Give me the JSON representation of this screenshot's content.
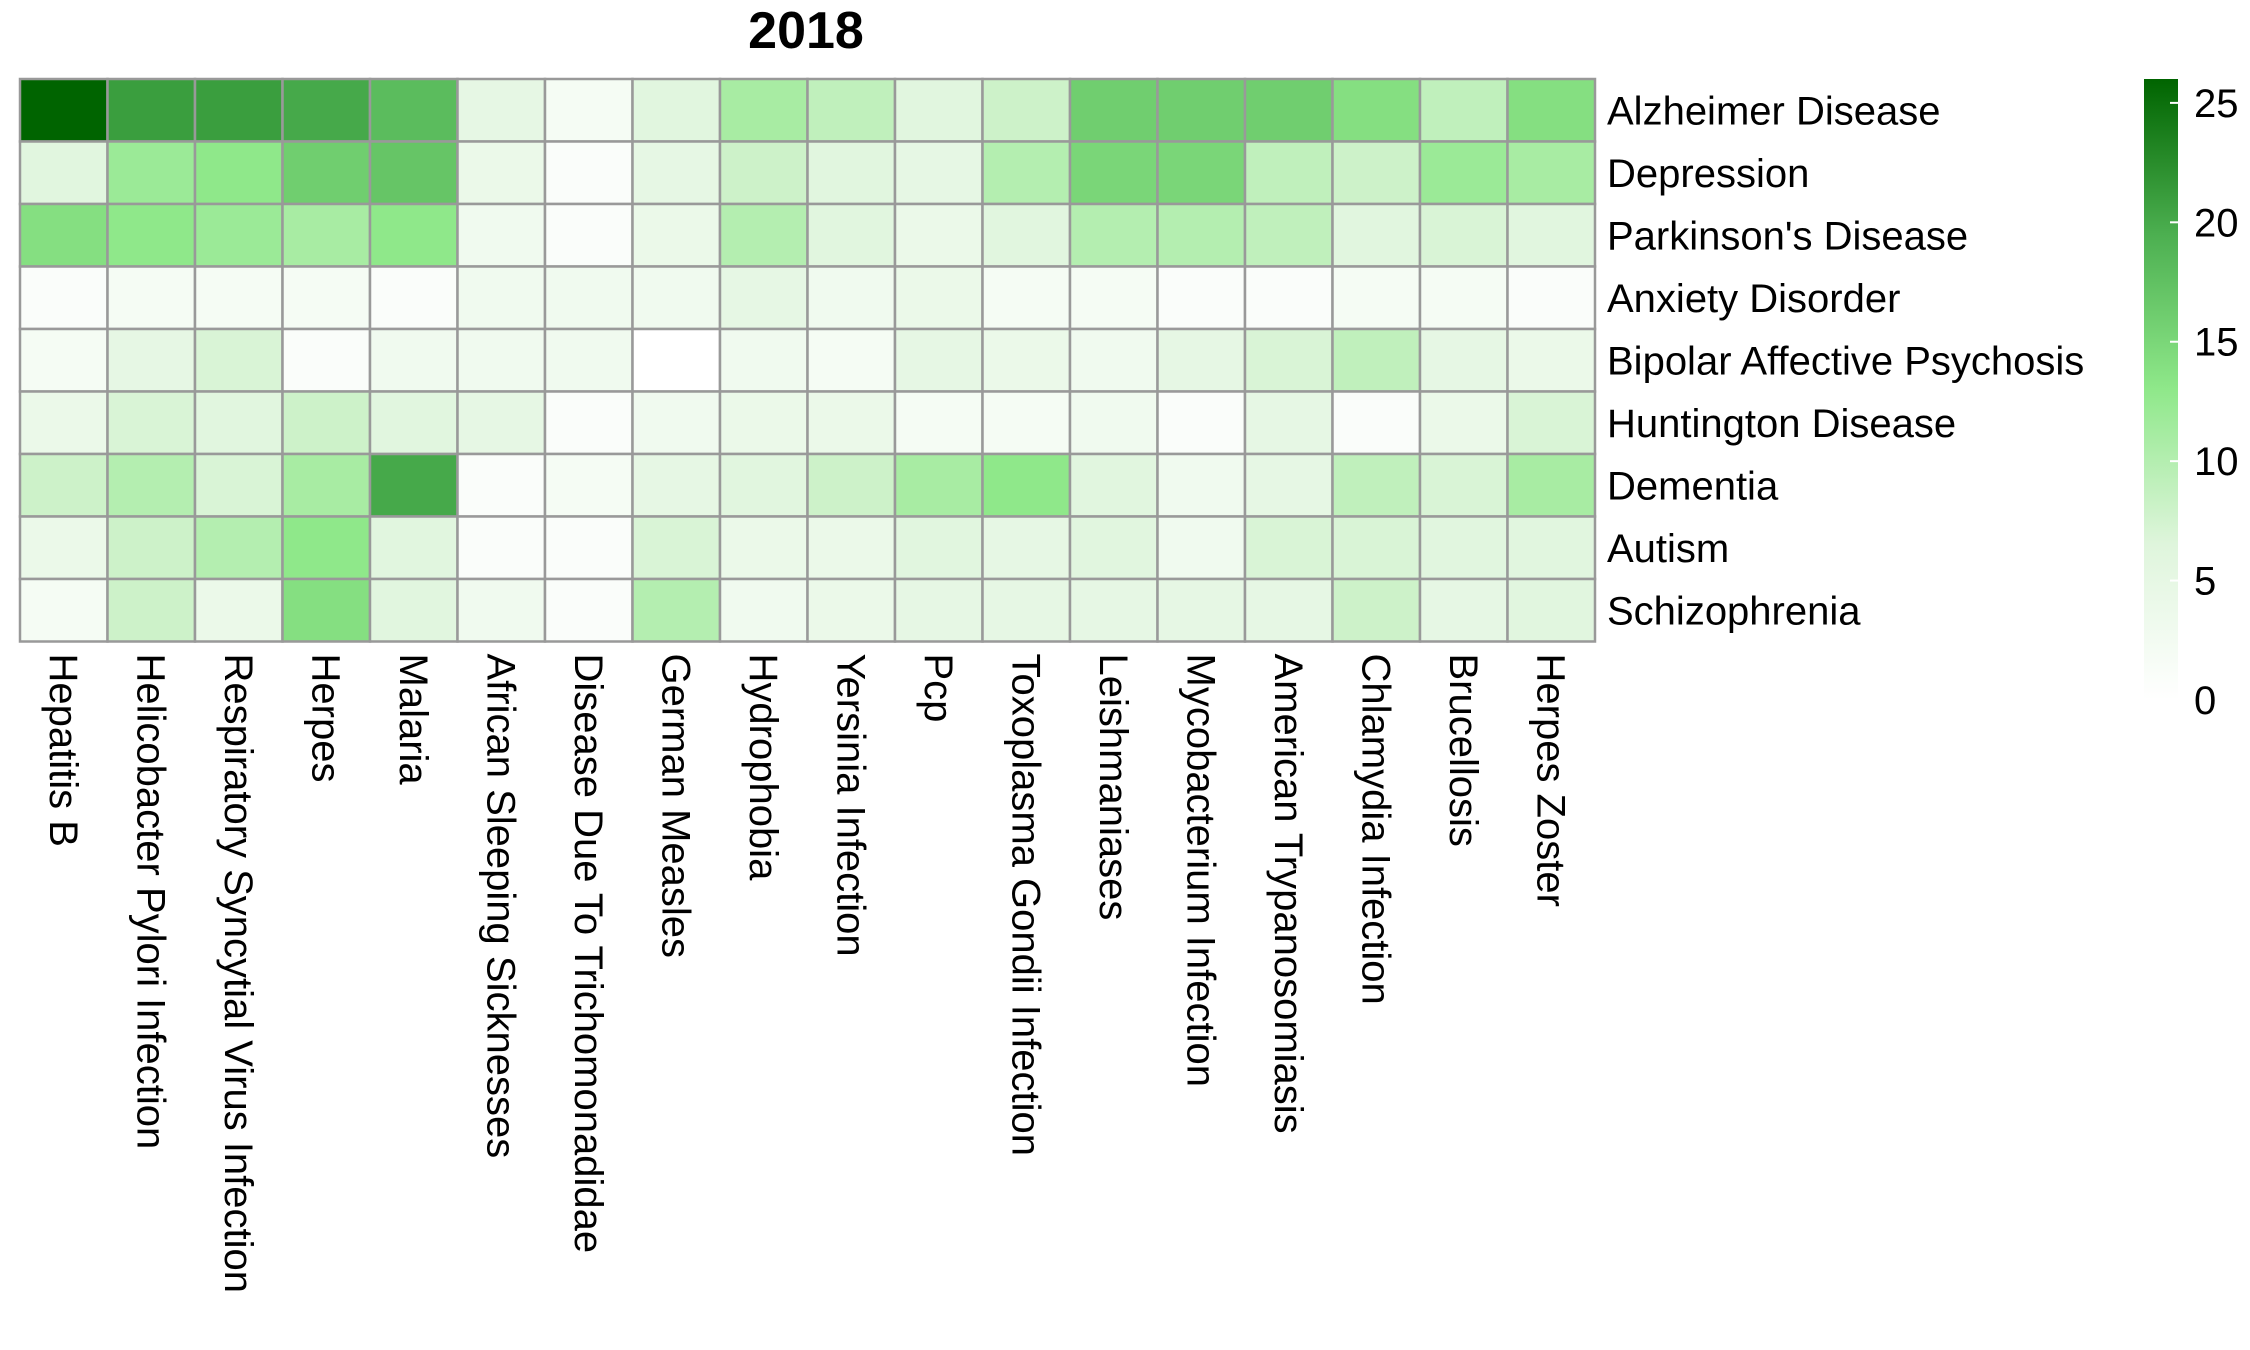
{
  "chart_data": {
    "type": "heatmap",
    "title": "2018",
    "rows": [
      "Alzheimer Disease",
      "Depression",
      "Parkinson's Disease",
      "Anxiety Disorder",
      "Bipolar Affective Psychosis",
      "Huntington Disease",
      "Dementia",
      "Autism",
      "Schizophrenia"
    ],
    "columns": [
      "Hepatitis B",
      "Helicobacter Pylori Infection",
      "Respiratory Syncytial Virus Infection",
      "Herpes",
      "Malaria",
      "African Sleeping Sicknesses",
      "Disease Due To Trichomonadidae",
      "German Measles",
      "Hydrophobia",
      "Yersinia Infection",
      "Pcp",
      "Toxoplasma Gondii Infection",
      "Leishmaniases",
      "Mycobacterium Infection",
      "American Trypanosomiasis",
      "Chlamydia Infection",
      "Brucellosis",
      "Herpes Zoster"
    ],
    "values": [
      [
        26,
        21,
        21,
        20,
        18,
        5,
        2,
        6,
        11,
        9,
        6,
        8,
        16,
        16,
        16,
        14,
        9,
        14
      ],
      [
        6,
        12,
        13,
        16,
        17,
        4,
        1,
        5,
        8,
        6,
        5,
        10,
        15,
        15,
        9,
        8,
        12,
        11
      ],
      [
        14,
        13,
        12,
        11,
        13,
        3,
        1,
        4,
        10,
        6,
        4,
        6,
        10,
        10,
        9,
        6,
        7,
        6
      ],
      [
        1,
        2,
        2,
        2,
        1,
        3,
        3,
        3,
        5,
        3,
        4,
        2,
        2,
        1,
        1,
        2,
        2,
        1
      ],
      [
        2,
        5,
        7,
        1,
        3,
        3,
        3,
        0,
        3,
        2,
        5,
        4,
        3,
        5,
        7,
        9,
        5,
        4
      ],
      [
        4,
        7,
        6,
        8,
        6,
        5,
        1,
        3,
        4,
        4,
        2,
        2,
        3,
        1,
        5,
        1,
        4,
        7
      ],
      [
        8,
        10,
        7,
        11,
        20,
        1,
        2,
        5,
        6,
        8,
        11,
        13,
        6,
        3,
        5,
        9,
        7,
        11
      ],
      [
        4,
        8,
        10,
        13,
        6,
        1,
        1,
        7,
        4,
        4,
        6,
        5,
        6,
        3,
        7,
        7,
        6,
        6
      ],
      [
        2,
        8,
        4,
        14,
        6,
        3,
        1,
        10,
        3,
        4,
        5,
        5,
        5,
        5,
        5,
        8,
        5,
        6
      ]
    ],
    "color_scale": {
      "min": 0,
      "max": 26,
      "colors": [
        "#ffffff",
        "#dff5dc",
        "#8fe88a",
        "#4caf50",
        "#006400"
      ],
      "ticks": [
        "0",
        "5",
        "10",
        "15",
        "20",
        "25"
      ]
    },
    "grid_color": "#999999",
    "legend_position": "right"
  }
}
